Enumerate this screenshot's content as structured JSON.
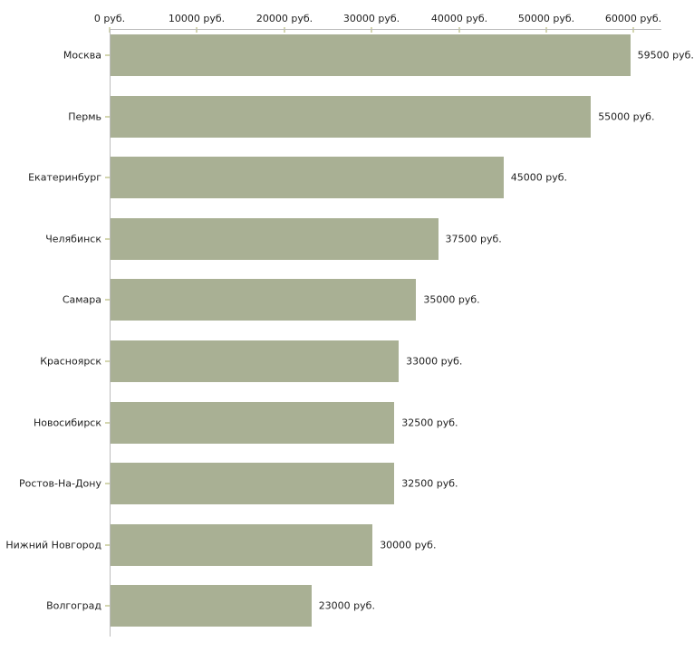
{
  "chart_data": {
    "type": "bar",
    "orientation": "horizontal",
    "title": "",
    "xlabel": "",
    "ylabel": "",
    "unit": "руб.",
    "categories": [
      "Москва",
      "Пермь",
      "Екатеринбург",
      "Челябинск",
      "Самара",
      "Красноярск",
      "Новосибирск",
      "Ростов-На-Дону",
      "Нижний Новгород",
      "Волгоград"
    ],
    "values": [
      59500,
      55000,
      45000,
      37500,
      35000,
      33000,
      32500,
      32500,
      30000,
      23000
    ],
    "value_labels": [
      "59500 руб.",
      "55000 руб.",
      "45000 руб.",
      "37500 руб.",
      "35000 руб.",
      "33000 руб.",
      "32500 руб.",
      "32500 руб.",
      "30000 руб.",
      "23000 руб."
    ],
    "x_tick_labels": [
      "0 руб.",
      "10000 руб.",
      "20000 руб.",
      "30000 руб.",
      "40000 руб.",
      "50000 руб.",
      "60000 руб."
    ],
    "xlim": [
      0,
      60000
    ],
    "x_tick_step": 10000,
    "grid": false,
    "legend_position": "none",
    "bar_color": "#a9b094",
    "axis_color": "#bcbcbc",
    "tick_color": "#d4d6b0",
    "text_color": "#1e1e1e",
    "background_color": "#ffffff"
  }
}
